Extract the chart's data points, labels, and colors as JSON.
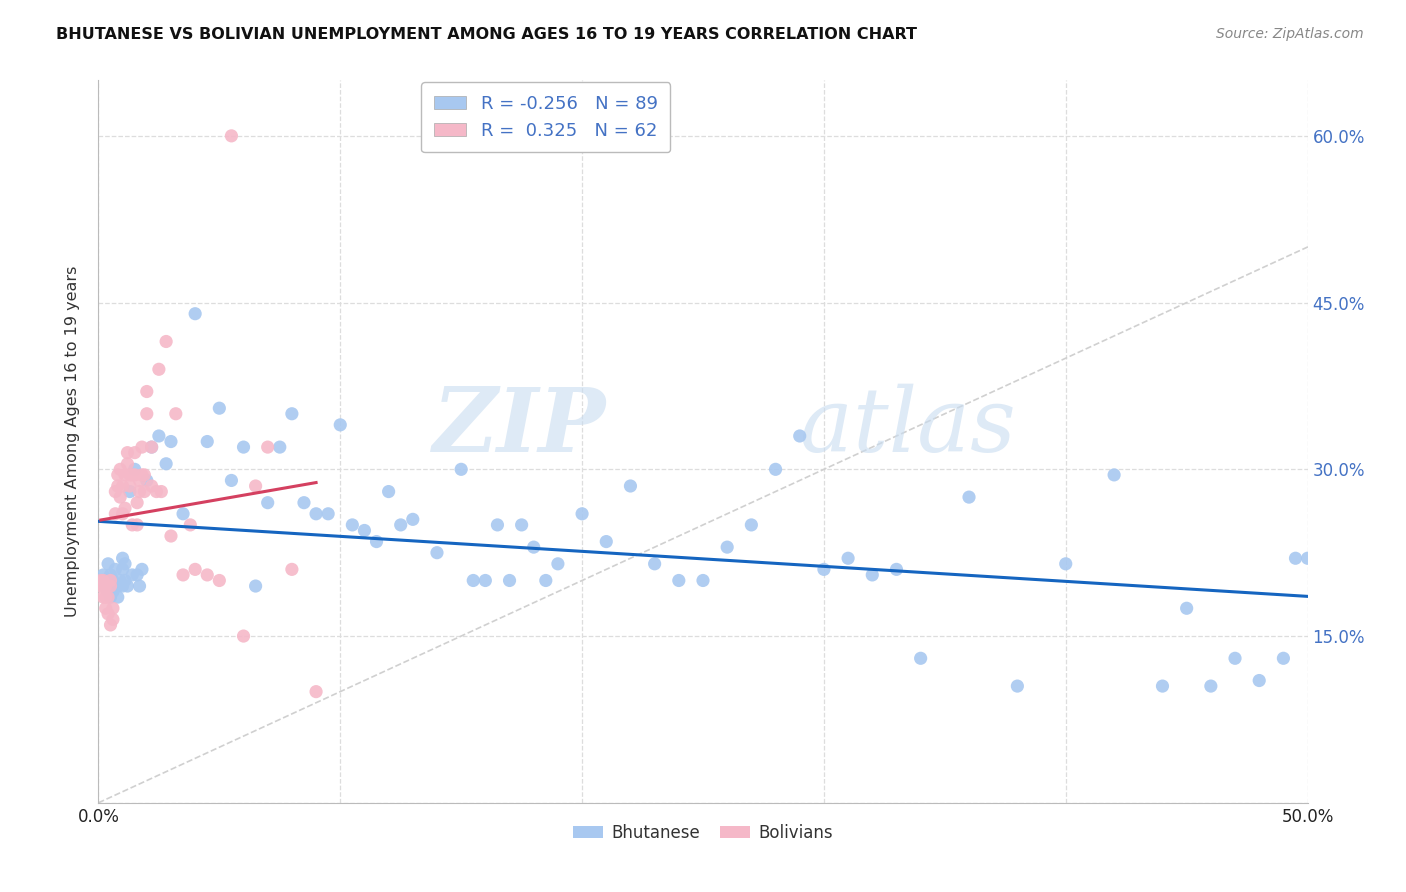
{
  "title": "BHUTANESE VS BOLIVIAN UNEMPLOYMENT AMONG AGES 16 TO 19 YEARS CORRELATION CHART",
  "source": "Source: ZipAtlas.com",
  "ylabel": "Unemployment Among Ages 16 to 19 years",
  "xlim": [
    0.0,
    0.5
  ],
  "ylim": [
    0.0,
    0.65
  ],
  "x_tick_vals": [
    0.0,
    0.5
  ],
  "x_tick_labels": [
    "0.0%",
    "50.0%"
  ],
  "y_tick_vals": [
    0.0,
    0.15,
    0.3,
    0.45,
    0.6
  ],
  "y_tick_labels_right": [
    "",
    "15.0%",
    "30.0%",
    "45.0%",
    "60.0%"
  ],
  "bhutanese_R": "-0.256",
  "bhutanese_N": "89",
  "bolivian_R": "0.325",
  "bolivian_N": "62",
  "blue_scatter_color": "#A8C8F0",
  "pink_scatter_color": "#F5B8C8",
  "blue_line_color": "#1565C0",
  "pink_line_color": "#D44060",
  "diagonal_line_color": "#D0D0D0",
  "legend_text_color": "#4472C4",
  "right_axis_color": "#4472C4",
  "background_color": "#FFFFFF",
  "grid_color": "#DDDDDD",
  "watermark_color": "#C8DCF0",
  "bhutanese_x": [
    0.002,
    0.002,
    0.003,
    0.004,
    0.004,
    0.005,
    0.005,
    0.005,
    0.006,
    0.006,
    0.007,
    0.007,
    0.008,
    0.008,
    0.009,
    0.01,
    0.01,
    0.01,
    0.011,
    0.011,
    0.012,
    0.013,
    0.014,
    0.015,
    0.016,
    0.017,
    0.018,
    0.02,
    0.022,
    0.025,
    0.028,
    0.03,
    0.035,
    0.04,
    0.045,
    0.05,
    0.055,
    0.06,
    0.065,
    0.07,
    0.075,
    0.08,
    0.085,
    0.09,
    0.095,
    0.1,
    0.105,
    0.11,
    0.115,
    0.12,
    0.125,
    0.13,
    0.14,
    0.15,
    0.155,
    0.16,
    0.165,
    0.17,
    0.175,
    0.18,
    0.185,
    0.19,
    0.2,
    0.21,
    0.22,
    0.23,
    0.24,
    0.25,
    0.26,
    0.27,
    0.28,
    0.29,
    0.3,
    0.31,
    0.32,
    0.33,
    0.34,
    0.36,
    0.38,
    0.4,
    0.42,
    0.44,
    0.45,
    0.46,
    0.47,
    0.48,
    0.49,
    0.495,
    0.5
  ],
  "bhutanese_y": [
    0.205,
    0.2,
    0.195,
    0.19,
    0.215,
    0.195,
    0.205,
    0.185,
    0.19,
    0.2,
    0.195,
    0.21,
    0.185,
    0.195,
    0.2,
    0.22,
    0.21,
    0.195,
    0.215,
    0.2,
    0.195,
    0.28,
    0.205,
    0.3,
    0.205,
    0.195,
    0.21,
    0.29,
    0.32,
    0.33,
    0.305,
    0.325,
    0.26,
    0.44,
    0.325,
    0.355,
    0.29,
    0.32,
    0.195,
    0.27,
    0.32,
    0.35,
    0.27,
    0.26,
    0.26,
    0.34,
    0.25,
    0.245,
    0.235,
    0.28,
    0.25,
    0.255,
    0.225,
    0.3,
    0.2,
    0.2,
    0.25,
    0.2,
    0.25,
    0.23,
    0.2,
    0.215,
    0.26,
    0.235,
    0.285,
    0.215,
    0.2,
    0.2,
    0.23,
    0.25,
    0.3,
    0.33,
    0.21,
    0.22,
    0.205,
    0.21,
    0.13,
    0.275,
    0.105,
    0.215,
    0.295,
    0.105,
    0.175,
    0.105,
    0.13,
    0.11,
    0.13,
    0.22,
    0.22
  ],
  "bolivian_x": [
    0.001,
    0.001,
    0.002,
    0.002,
    0.002,
    0.003,
    0.003,
    0.003,
    0.004,
    0.004,
    0.005,
    0.005,
    0.005,
    0.006,
    0.006,
    0.007,
    0.007,
    0.008,
    0.008,
    0.009,
    0.009,
    0.01,
    0.01,
    0.011,
    0.011,
    0.012,
    0.012,
    0.013,
    0.013,
    0.014,
    0.014,
    0.015,
    0.015,
    0.016,
    0.016,
    0.017,
    0.017,
    0.018,
    0.018,
    0.019,
    0.019,
    0.02,
    0.02,
    0.022,
    0.022,
    0.024,
    0.025,
    0.026,
    0.028,
    0.03,
    0.032,
    0.035,
    0.038,
    0.04,
    0.045,
    0.05,
    0.055,
    0.06,
    0.065,
    0.07,
    0.08,
    0.09
  ],
  "bolivian_y": [
    0.2,
    0.195,
    0.2,
    0.195,
    0.185,
    0.175,
    0.185,
    0.195,
    0.185,
    0.17,
    0.2,
    0.195,
    0.16,
    0.175,
    0.165,
    0.28,
    0.26,
    0.295,
    0.285,
    0.3,
    0.275,
    0.285,
    0.26,
    0.265,
    0.295,
    0.315,
    0.305,
    0.295,
    0.285,
    0.25,
    0.295,
    0.315,
    0.295,
    0.25,
    0.27,
    0.29,
    0.28,
    0.32,
    0.295,
    0.28,
    0.295,
    0.37,
    0.35,
    0.32,
    0.285,
    0.28,
    0.39,
    0.28,
    0.415,
    0.24,
    0.35,
    0.205,
    0.25,
    0.21,
    0.205,
    0.2,
    0.6,
    0.15,
    0.285,
    0.32,
    0.21,
    0.1
  ]
}
